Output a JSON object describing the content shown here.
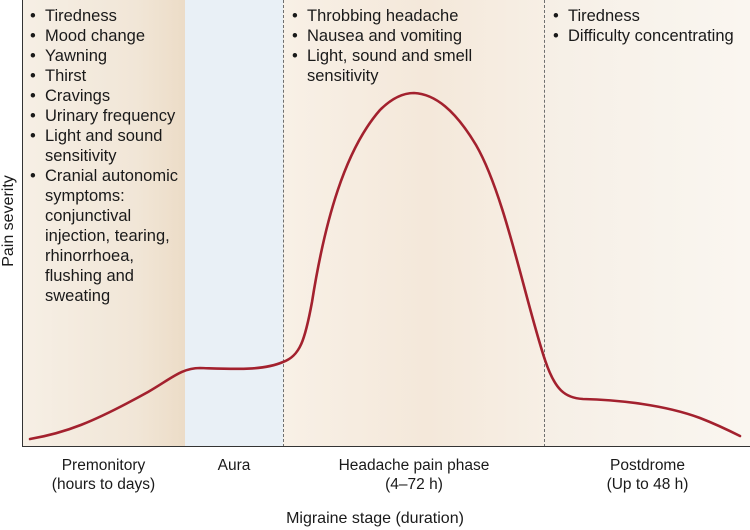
{
  "axes": {
    "y_label": "Pain severity",
    "x_label": "Migraine stage (duration)"
  },
  "colors": {
    "curve": "#a3212e",
    "premonitory_bg": "#f1e6d7",
    "aura_bg": "#e9f0f6",
    "headache_bg": "#f4e8da",
    "postdrome_bg": "#f6efe6"
  },
  "stages": [
    {
      "name": "Premonitory",
      "duration": "(hours to days)",
      "symptoms": [
        "Tiredness",
        "Mood change",
        "Yawning",
        "Thirst",
        "Cravings",
        "Urinary frequency",
        "Light and sound sensitivity",
        "Cranial autonomic symptoms: conjunctival injection, tearing, rhinorrhoea, flushing and sweating"
      ]
    },
    {
      "name": "Aura",
      "duration": "",
      "symptoms": []
    },
    {
      "name": "Headache pain phase",
      "duration": "(4–72 h)",
      "symptoms": [
        "Throbbing headache",
        "Nausea and vomiting",
        "Light, sound and smell sensitivity"
      ]
    },
    {
      "name": "Postdrome",
      "duration": "(Up to 48 h)",
      "symptoms": [
        "Tiredness",
        "Difficulty concentrating"
      ]
    }
  ]
}
